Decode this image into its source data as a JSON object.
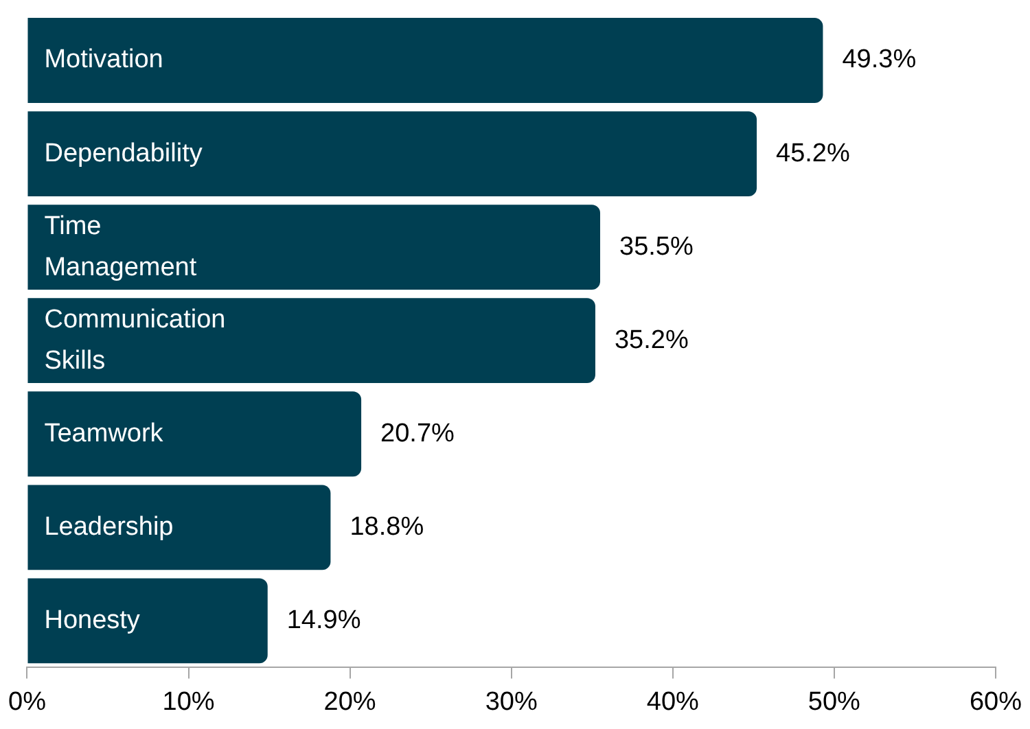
{
  "chart_data": {
    "type": "bar",
    "orientation": "horizontal",
    "categories": [
      "Motivation",
      "Dependability",
      "Time Management",
      "Communication Skills",
      "Teamwork",
      "Leadership",
      "Honesty"
    ],
    "values": [
      49.3,
      45.2,
      35.5,
      35.2,
      20.7,
      18.8,
      14.9
    ],
    "value_labels": [
      "49.3%",
      "45.2%",
      "35.5%",
      "35.2%",
      "20.7%",
      "18.8%",
      "14.9%"
    ],
    "color": "#003f52",
    "xlim": [
      0,
      60
    ],
    "xticks": [
      {
        "value": 0,
        "label": "0%"
      },
      {
        "value": 10,
        "label": "10%"
      },
      {
        "value": 20,
        "label": "20%"
      },
      {
        "value": 30,
        "label": "30%"
      },
      {
        "value": 40,
        "label": "40%"
      },
      {
        "value": 50,
        "label": "50%"
      },
      {
        "value": 60,
        "label": "60%"
      }
    ],
    "tick_labels": "x",
    "grid": false,
    "legend": false
  }
}
